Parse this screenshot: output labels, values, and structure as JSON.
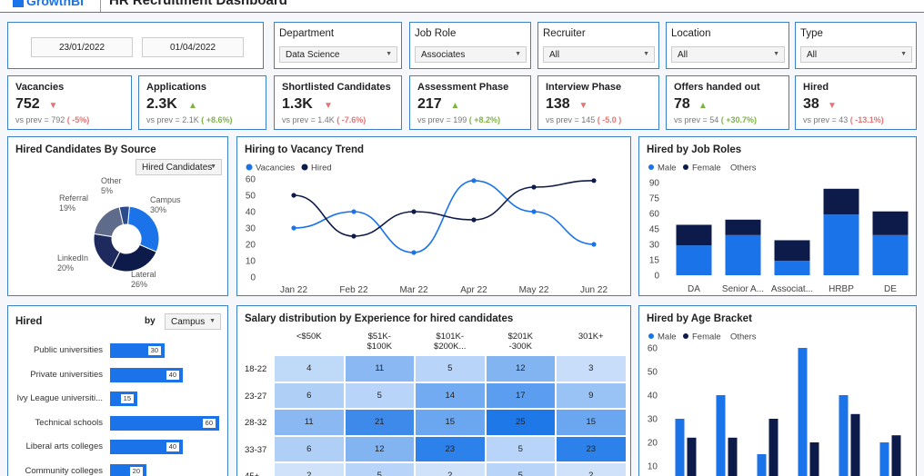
{
  "header": {
    "logo_text": "GrowthBI",
    "title": "HR Recruitment Dashboard"
  },
  "filters": {
    "date_start": "23/01/2022",
    "date_end": "01/04/2022",
    "department": {
      "label": "Department",
      "value": "Data Science"
    },
    "job_role": {
      "label": "Job Role",
      "value": "Associates"
    },
    "recruiter": {
      "label": "Recruiter",
      "value": "All"
    },
    "location": {
      "label": "Location",
      "value": "All"
    },
    "type": {
      "label": "Type",
      "value": "All"
    }
  },
  "kpis": [
    {
      "label": "Vacancies",
      "value": "752",
      "dir": "down",
      "prev": "vs prev =  792",
      "delta": "( -5%)"
    },
    {
      "label": "Applications",
      "value": "2.3K",
      "dir": "up",
      "prev": "vs prev =  2.1K",
      "delta": "( +8.6%)"
    },
    {
      "label": "Shortlisted Candidates",
      "value": "1.3K",
      "dir": "down",
      "prev": "vs prev =  1.4K",
      "delta": "( -7.6%)"
    },
    {
      "label": "Assessment Phase",
      "value": "217",
      "dir": "up",
      "prev": "vs prev =  199",
      "delta": "( +8.2%)"
    },
    {
      "label": "Interview Phase",
      "value": "138",
      "dir": "down",
      "prev": "vs prev =  145",
      "delta": "( -5.0 )"
    },
    {
      "label": "Offers handed out",
      "value": "78",
      "dir": "up",
      "prev": "vs prev =  54",
      "delta": "( +30.7%)"
    },
    {
      "label": "Hired",
      "value": "38",
      "dir": "down",
      "prev": "vs prev =  43",
      "delta": "( -13.1%)"
    }
  ],
  "source_panel": {
    "title": "Hired Candidates By Source",
    "dropdown": "Hired Candidates"
  },
  "trend_panel": {
    "title": "Hiring to Vacancy Trend"
  },
  "roles_panel": {
    "title": "Hired by Job Roles"
  },
  "hired_panel": {
    "title": "Hired",
    "by_label": "by",
    "dropdown": "Campus"
  },
  "salary_panel": {
    "title": "Salary distribution by Experience for hired candidates"
  },
  "age_panel": {
    "title": "Hired by Age Bracket"
  },
  "colors": {
    "blue": "#1a73e8",
    "navy": "#0d1b4b",
    "accent": "#3b82c4"
  },
  "chart_data": [
    {
      "type": "pie",
      "id": "source",
      "title": "Hired Candidates By Source",
      "slices": [
        {
          "name": "Campus",
          "pct": "30%",
          "value": 30
        },
        {
          "name": "Lateral",
          "pct": "26%",
          "value": 26
        },
        {
          "name": "LinkedIn",
          "pct": "20%",
          "value": 20
        },
        {
          "name": "Referral",
          "pct": "19%",
          "value": 19
        },
        {
          "name": "Other",
          "pct": "5%",
          "value": 5
        }
      ]
    },
    {
      "type": "line",
      "id": "trend",
      "title": "Hiring to Vacancy Trend",
      "categories": [
        "Jan 22",
        "Feb 22",
        "Mar 22",
        "Apr 22",
        "May 22",
        "Jun 22"
      ],
      "yticks": [
        "60",
        "50",
        "40",
        "30",
        "20",
        "10",
        "0"
      ],
      "ylim": [
        0,
        60
      ],
      "series": [
        {
          "name": "Vacancies",
          "values": [
            30,
            40,
            15,
            59,
            40,
            20
          ]
        },
        {
          "name": "Hired",
          "values": [
            50,
            25,
            40,
            35,
            55,
            59
          ]
        }
      ]
    },
    {
      "type": "bar",
      "id": "roles",
      "title": "Hired by Job Roles",
      "legend": [
        "Male",
        "Female",
        "Others"
      ],
      "categories": [
        "DA",
        "Senior A...",
        "Associat...",
        "HRBP",
        "DE"
      ],
      "yticks": [
        "90",
        "75",
        "60",
        "45",
        "30",
        "15",
        "0"
      ],
      "ylim": [
        0,
        90
      ],
      "series": [
        {
          "name": "Male",
          "values": [
            29,
            39,
            14,
            59,
            39
          ]
        },
        {
          "name": "Female",
          "values": [
            20,
            15,
            20,
            25,
            23
          ]
        }
      ]
    },
    {
      "type": "bar",
      "id": "hired_by",
      "title": "Hired",
      "categories": [
        "Public universities",
        "Private universities",
        "Ivy League universiti...",
        "Technical schools",
        "Liberal arts colleges",
        "Community colleges"
      ],
      "values": [
        30,
        40,
        15,
        60,
        40,
        20
      ],
      "labels": [
        "30",
        "40",
        "15",
        "60",
        "40",
        "20"
      ],
      "xlim": [
        0,
        60
      ]
    },
    {
      "type": "heatmap",
      "id": "salary",
      "title": "Salary distribution by Experience for hired candidates",
      "columns": [
        "<$50K",
        "$51K-\n$100K",
        "$101K-\n$200K...",
        "$201K\n-300K",
        "301K+"
      ],
      "rows": [
        "18-22",
        "23-27",
        "28-32",
        "33-37",
        "45+"
      ],
      "values": [
        [
          "4",
          "11",
          "5",
          "12",
          "3"
        ],
        [
          "6",
          "5",
          "14",
          "17",
          "9"
        ],
        [
          "11",
          "21",
          "15",
          "25",
          "15"
        ],
        [
          "6",
          "12",
          "23",
          "5",
          "23"
        ],
        [
          "2",
          "5",
          "2",
          "5",
          "2"
        ]
      ]
    },
    {
      "type": "bar",
      "id": "age",
      "title": "Hired by Age Bracket",
      "legend": [
        "Male",
        "Female",
        "Others"
      ],
      "yticks": [
        "60",
        "50",
        "40",
        "30",
        "20",
        "10"
      ],
      "ylim": [
        0,
        60
      ],
      "series": [
        {
          "name": "Male",
          "values": [
            30,
            40,
            15,
            60,
            40,
            20
          ]
        },
        {
          "name": "Female",
          "values": [
            22,
            22,
            30,
            20,
            32,
            23
          ]
        }
      ]
    }
  ]
}
